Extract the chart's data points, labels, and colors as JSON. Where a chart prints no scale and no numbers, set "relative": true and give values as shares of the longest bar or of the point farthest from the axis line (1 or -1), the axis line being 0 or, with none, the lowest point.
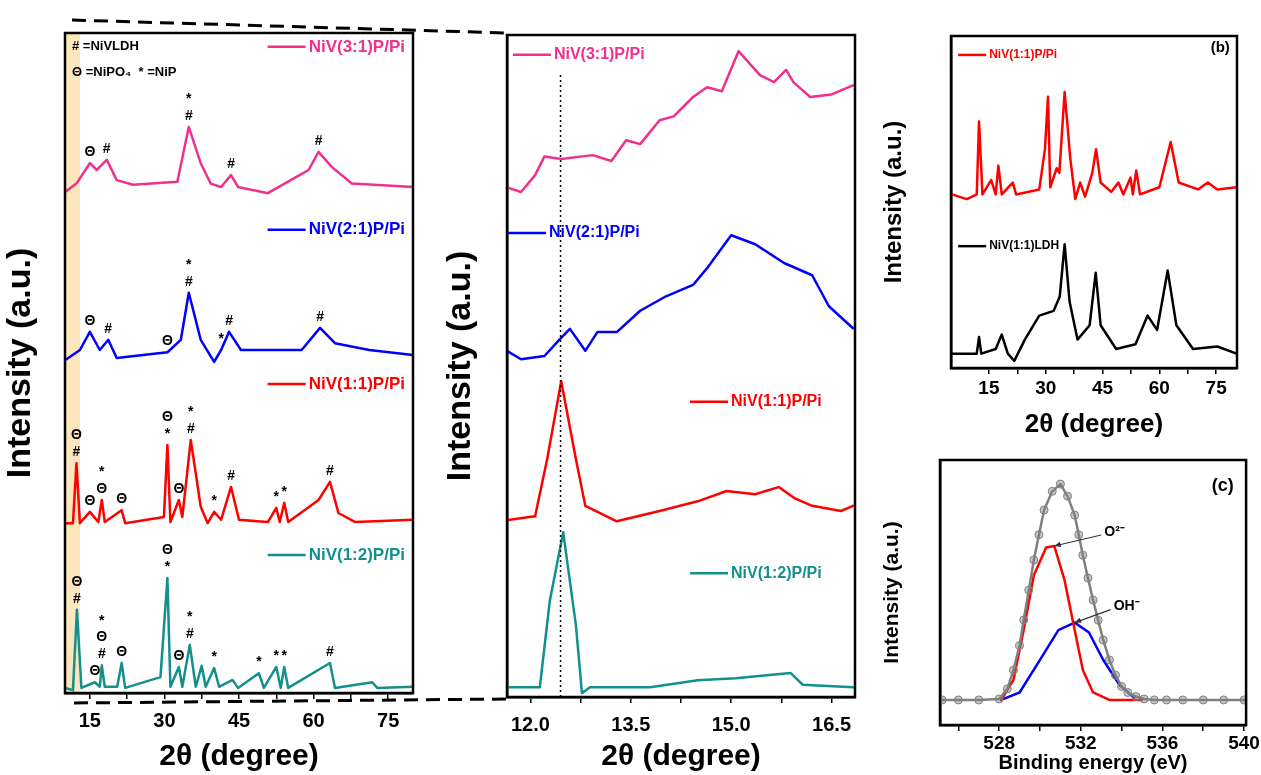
{
  "chart_data": [
    {
      "type": "line",
      "relative": true,
      "legend": "right",
      "xlabel": "2θ (degree)",
      "ylabel": "Intensity (a.u.)",
      "xlim": [
        10,
        80
      ],
      "xticks": [
        15,
        {
          "value": 22.5,
          "label": null
        },
        30,
        {
          "value": 37.5,
          "label": null
        },
        45,
        {
          "value": 52.5,
          "label": null
        },
        60,
        {
          "value": 67.5,
          "label": null
        },
        75
      ],
      "bands": [
        {
          "axis": "x",
          "from": 10,
          "to": 13,
          "color": "#fbe6bd"
        }
      ],
      "series": [
        {
          "name": "NiV(3:1)P/Pi",
          "color": "#f0308c",
          "x": [
            10,
            12.3,
            15,
            16.4,
            18.4,
            20.4,
            23.7,
            32.6,
            34.9,
            37.3,
            39.3,
            41.4,
            43.4,
            44.8,
            50.8,
            56.2,
            59,
            61,
            63.7,
            67.7,
            80
          ],
          "values": [
            0.885,
            0.9,
            0.936,
            0.924,
            0.942,
            0.906,
            0.898,
            0.903,
            1.0,
            0.936,
            0.9,
            0.894,
            0.915,
            0.894,
            0.883,
            0.91,
            0.924,
            0.956,
            0.929,
            0.9,
            0.894
          ]
        },
        {
          "name": "NiV(2:1)P/Pi",
          "color": "#0000ff",
          "x": [
            10,
            13,
            15,
            17,
            18.7,
            20.4,
            30.6,
            33.3,
            34.9,
            37.3,
            40,
            41.4,
            43,
            45.4,
            57.6,
            61.3,
            64.3,
            71.2,
            80
          ],
          "values": [
            0.588,
            0.606,
            0.638,
            0.606,
            0.624,
            0.592,
            0.602,
            0.624,
            0.707,
            0.624,
            0.585,
            0.606,
            0.638,
            0.606,
            0.606,
            0.645,
            0.618,
            0.606,
            0.597
          ]
        },
        {
          "name": "NiV(1:1)P/Pi",
          "color": "#ff0000",
          "x": [
            10,
            11.6,
            12.3,
            13,
            15,
            16.7,
            17.4,
            18,
            21.4,
            22.1,
            29.9,
            30.6,
            31.2,
            32.9,
            33.6,
            35.3,
            37.3,
            38.7,
            40,
            41.4,
            43.4,
            45,
            50.8,
            52.5,
            53.2,
            54.1,
            54.9,
            61,
            63.3,
            65,
            68.4,
            80
          ],
          "values": [
            0.3,
            0.3,
            0.406,
            0.3,
            0.32,
            0.302,
            0.341,
            0.302,
            0.323,
            0.3,
            0.311,
            0.438,
            0.302,
            0.341,
            0.311,
            0.447,
            0.329,
            0.3,
            0.32,
            0.306,
            0.364,
            0.306,
            0.302,
            0.327,
            0.302,
            0.336,
            0.302,
            0.341,
            0.373,
            0.318,
            0.302,
            0.306
          ]
        },
        {
          "name": "NiV(1:2)P/Pi",
          "color": "#13908e",
          "x": [
            10,
            11.6,
            12.4,
            13.3,
            16,
            17,
            17.4,
            18,
            20.5,
            21.4,
            22.1,
            29.2,
            30.6,
            31.2,
            32.9,
            33.6,
            35.1,
            36.3,
            37.5,
            38.3,
            40,
            41,
            43.7,
            44.8,
            49,
            50,
            52.5,
            53.4,
            54.1,
            54.9,
            63.3,
            64.3,
            71.8,
            72.8,
            80
          ],
          "values": [
            0.009,
            0.005,
            0.147,
            0.009,
            0.019,
            0.011,
            0.049,
            0.011,
            0.011,
            0.053,
            0.009,
            0.028,
            0.203,
            0.011,
            0.046,
            0.011,
            0.085,
            0.011,
            0.048,
            0.011,
            0.044,
            0.011,
            0.023,
            0.009,
            0.035,
            0.009,
            0.046,
            0.009,
            0.046,
            0.009,
            0.053,
            0.009,
            0.019,
            0.009,
            0.011
          ]
        }
      ],
      "annotations": [
        "# =NiVLDH",
        "Θ =NiPO₄  * =NiP",
        {
          "text": "Θ",
          "x": 15,
          "y": 0.936
        },
        {
          "text": "#",
          "x": 18.4,
          "y": 0.942
        },
        {
          "text": "*\n#",
          "x": 34.9,
          "y": 1.0
        },
        {
          "text": "#",
          "x": 43.4,
          "y": 0.915
        },
        {
          "text": "#",
          "x": 61,
          "y": 0.956
        },
        {
          "text": "Θ",
          "x": 15,
          "y": 0.638
        },
        {
          "text": "#",
          "x": 18.7,
          "y": 0.624
        },
        {
          "text": "Θ",
          "x": 30.6,
          "y": 0.602
        },
        {
          "text": "*\n#",
          "x": 34.9,
          "y": 0.707
        },
        {
          "text": "*",
          "x": 41.4,
          "y": 0.606
        },
        {
          "text": "#",
          "x": 43,
          "y": 0.638
        },
        {
          "text": "#",
          "x": 61.3,
          "y": 0.645
        },
        {
          "text": "Θ\n#",
          "x": 12.3,
          "y": 0.406
        },
        {
          "text": "Θ",
          "x": 15,
          "y": 0.32
        },
        {
          "text": "*\nΘ",
          "x": 17.4,
          "y": 0.341
        },
        {
          "text": "Θ",
          "x": 21.4,
          "y": 0.323
        },
        {
          "text": "Θ\n*",
          "x": 30.6,
          "y": 0.438
        },
        {
          "text": "Θ",
          "x": 32.9,
          "y": 0.341
        },
        {
          "text": "*\n#",
          "x": 35.3,
          "y": 0.447
        },
        {
          "text": "*",
          "x": 40,
          "y": 0.32
        },
        {
          "text": "#",
          "x": 43.4,
          "y": 0.364
        },
        {
          "text": "*",
          "x": 52.5,
          "y": 0.327
        },
        {
          "text": "*",
          "x": 54.1,
          "y": 0.336
        },
        {
          "text": "#",
          "x": 63.3,
          "y": 0.373
        },
        {
          "text": "Θ\n#",
          "x": 12.4,
          "y": 0.147
        },
        {
          "text": "Θ",
          "x": 16,
          "y": 0.019
        },
        {
          "text": "*\nΘ\n#",
          "x": 17.4,
          "y": 0.049
        },
        {
          "text": "Θ",
          "x": 21.4,
          "y": 0.053
        },
        {
          "text": "Θ\n*",
          "x": 30.6,
          "y": 0.203
        },
        {
          "text": "Θ",
          "x": 32.9,
          "y": 0.046
        },
        {
          "text": "*\n#",
          "x": 35.1,
          "y": 0.085
        },
        {
          "text": "*",
          "x": 40,
          "y": 0.044
        },
        {
          "text": "*",
          "x": 49,
          "y": 0.035
        },
        {
          "text": "*",
          "x": 52.5,
          "y": 0.046
        },
        {
          "text": "*",
          "x": 54.1,
          "y": 0.046
        },
        {
          "text": "#",
          "x": 63.3,
          "y": 0.053
        }
      ]
    },
    {
      "type": "line",
      "relative": true,
      "legend": "left",
      "xlabel": "2θ (degree)",
      "ylabel": "Intensity (a.u.)",
      "xlim": [
        11.65,
        16.85
      ],
      "xticks": [
        {
          "value": 12,
          "label": "12.0"
        },
        {
          "value": 12.75,
          "label": null
        },
        {
          "value": 13.5,
          "label": "13.5"
        },
        {
          "value": 14.25,
          "label": null
        },
        {
          "value": 15,
          "label": "15.0"
        },
        {
          "value": 15.75,
          "label": null
        },
        {
          "value": 16.5,
          "label": "16.5"
        }
      ],
      "ref_lines": [
        {
          "axis": "x",
          "value": 12.45,
          "line_style": "dotted",
          "color": "#000000"
        }
      ],
      "series": [
        {
          "name": "NiV(3:1)P/Pi",
          "color": "#f0308c",
          "x": [
            11.65,
            11.86,
            12.07,
            12.21,
            12.46,
            12.93,
            13.21,
            13.43,
            13.64,
            13.93,
            14.14,
            14.43,
            14.64,
            14.86,
            15.11,
            15.43,
            15.64,
            15.82,
            15.93,
            16.18,
            16.5,
            16.82
          ],
          "values": [
            0.789,
            0.782,
            0.808,
            0.837,
            0.833,
            0.839,
            0.83,
            0.862,
            0.856,
            0.893,
            0.899,
            0.929,
            0.944,
            0.938,
            1.0,
            0.963,
            0.952,
            0.971,
            0.952,
            0.929,
            0.933,
            0.947
          ]
        },
        {
          "name": "NiV(2:1)P/Pi",
          "color": "#0000ff",
          "x": [
            11.65,
            11.86,
            12.21,
            12.43,
            12.59,
            12.82,
            13.0,
            13.29,
            13.64,
            14.0,
            14.43,
            14.64,
            15.0,
            15.36,
            15.79,
            16.21,
            16.46,
            16.82
          ],
          "values": [
            0.536,
            0.523,
            0.528,
            0.553,
            0.57,
            0.536,
            0.565,
            0.565,
            0.598,
            0.619,
            0.638,
            0.664,
            0.715,
            0.701,
            0.672,
            0.653,
            0.605,
            0.571
          ]
        },
        {
          "name": "NiV(1:1)P/Pi",
          "color": "#ff0000",
          "x": [
            11.65,
            12.07,
            12.25,
            12.46,
            12.68,
            12.82,
            13.29,
            13.93,
            14.5,
            14.93,
            15.36,
            15.71,
            15.96,
            16.21,
            16.64,
            16.82
          ],
          "values": [
            0.274,
            0.28,
            0.368,
            0.489,
            0.368,
            0.296,
            0.272,
            0.288,
            0.303,
            0.319,
            0.314,
            0.325,
            0.307,
            0.296,
            0.288,
            0.296
          ]
        },
        {
          "name": "NiV(1:2)P/Pi",
          "color": "#13908e",
          "x": [
            11.65,
            12.14,
            12.29,
            12.49,
            12.68,
            12.77,
            12.89,
            13.79,
            14.5,
            15.07,
            15.57,
            15.89,
            16.07,
            16.82
          ],
          "values": [
            0.015,
            0.015,
            0.149,
            0.255,
            0.111,
            0.006,
            0.015,
            0.015,
            0.026,
            0.029,
            0.034,
            0.037,
            0.019,
            0.015
          ]
        }
      ]
    },
    {
      "type": "line",
      "relative": true,
      "legend": "top left",
      "xlabel": "2θ (degree)",
      "ylabel": "Intensity (a.u.)",
      "xlim": [
        5,
        80.5
      ],
      "xticks": [
        15,
        {
          "value": 22.5,
          "label": null
        },
        30,
        {
          "value": 37.5,
          "label": null
        },
        45,
        {
          "value": 52.5,
          "label": null
        },
        60,
        {
          "value": 67.5,
          "label": null
        },
        75
      ],
      "series": [
        {
          "name": "NiV(1:1)P/Pi",
          "color": "#ff0000",
          "x": [
            5.2,
            9.2,
            11.8,
            12.4,
            13.3,
            15.6,
            16.8,
            17.5,
            18.4,
            21.3,
            22.2,
            28.3,
            29.8,
            30.6,
            31.2,
            32.9,
            33.6,
            35,
            36.5,
            37.8,
            39.1,
            40.4,
            42.3,
            43.3,
            44.5,
            47.3,
            49.2,
            50.5,
            52.4,
            53,
            53.9,
            54.9,
            60,
            63,
            65.1,
            70.2,
            72.8,
            75.3,
            80.4
          ],
          "values": [
            0.629,
            0.612,
            0.629,
            0.893,
            0.629,
            0.681,
            0.629,
            0.733,
            0.629,
            0.672,
            0.629,
            0.647,
            0.793,
            0.983,
            0.655,
            0.724,
            0.707,
            1.0,
            0.759,
            0.612,
            0.672,
            0.621,
            0.707,
            0.793,
            0.672,
            0.638,
            0.672,
            0.629,
            0.69,
            0.629,
            0.716,
            0.629,
            0.655,
            0.819,
            0.672,
            0.647,
            0.672,
            0.647,
            0.655
          ]
        },
        {
          "name": "NiV(1:1)LDH",
          "color": "#000000",
          "x": [
            5.2,
            11.8,
            12.4,
            13,
            16.8,
            18.4,
            20,
            21.7,
            24.5,
            28.3,
            32.1,
            33.7,
            35,
            36.3,
            38.4,
            41.6,
            43.2,
            44.5,
            48.6,
            53.7,
            56.9,
            59.4,
            62.2,
            64.5,
            68.9,
            75.3,
            80.4
          ],
          "values": [
            0.052,
            0.052,
            0.112,
            0.052,
            0.069,
            0.121,
            0.052,
            0.026,
            0.103,
            0.19,
            0.207,
            0.259,
            0.448,
            0.241,
            0.103,
            0.155,
            0.345,
            0.155,
            0.069,
            0.086,
            0.19,
            0.138,
            0.353,
            0.155,
            0.069,
            0.078,
            0.052
          ]
        }
      ],
      "annotations": [
        "(b)"
      ]
    },
    {
      "type": "line",
      "relative": true,
      "xlabel": "Binding energy (eV)",
      "ylabel": "Intensity (a.u.)",
      "xlim": [
        525.1,
        540.1
      ],
      "xticks": [
        {
          "value": 526,
          "label": null
        },
        528,
        {
          "value": 530,
          "label": null
        },
        532,
        {
          "value": 534,
          "label": null
        },
        536,
        {
          "value": 538,
          "label": null
        },
        540
      ],
      "series": [
        {
          "color": "#808080",
          "marker": "circle",
          "x": [
            525.2,
            526,
            527,
            528,
            528.4,
            528.7,
            529,
            529.2,
            529.45,
            529.7,
            529.95,
            530.2,
            530.6,
            531,
            531.35,
            531.7,
            531.9,
            532.1,
            532.35,
            532.6,
            532.85,
            533.1,
            533.4,
            533.7,
            534,
            534.3,
            534.7,
            535.1,
            535.6,
            536.2,
            537,
            538,
            539,
            540
          ],
          "values": [
            0.104,
            0.104,
            0.104,
            0.108,
            0.15,
            0.228,
            0.33,
            0.436,
            0.56,
            0.685,
            0.79,
            0.892,
            0.97,
            1.0,
            0.95,
            0.871,
            0.79,
            0.705,
            0.61,
            0.519,
            0.435,
            0.353,
            0.27,
            0.207,
            0.16,
            0.135,
            0.118,
            0.108,
            0.104,
            0.104,
            0.104,
            0.104,
            0.104,
            0.104
          ]
        },
        {
          "color": "#ff0000",
          "x": [
            528.1,
            528.7,
            529.2,
            529.7,
            530.3,
            530.7,
            531.2,
            531.7,
            532.1,
            532.6,
            533.4,
            535
          ],
          "values": [
            0.104,
            0.187,
            0.394,
            0.622,
            0.737,
            0.743,
            0.602,
            0.394,
            0.228,
            0.135,
            0.104,
            0.104
          ]
        },
        {
          "color": "#0000ff",
          "x": [
            528.1,
            529,
            530,
            530.9,
            531.7,
            532.4,
            533.1,
            533.9,
            534.6
          ],
          "values": [
            0.104,
            0.135,
            0.27,
            0.394,
            0.425,
            0.384,
            0.27,
            0.166,
            0.114
          ]
        }
      ],
      "annotations": [
        "(c)",
        {
          "text": "O²⁻",
          "x": 530.7,
          "y": 0.743
        },
        {
          "text": "OH⁻",
          "x": 531.7,
          "y": 0.425
        }
      ]
    }
  ]
}
